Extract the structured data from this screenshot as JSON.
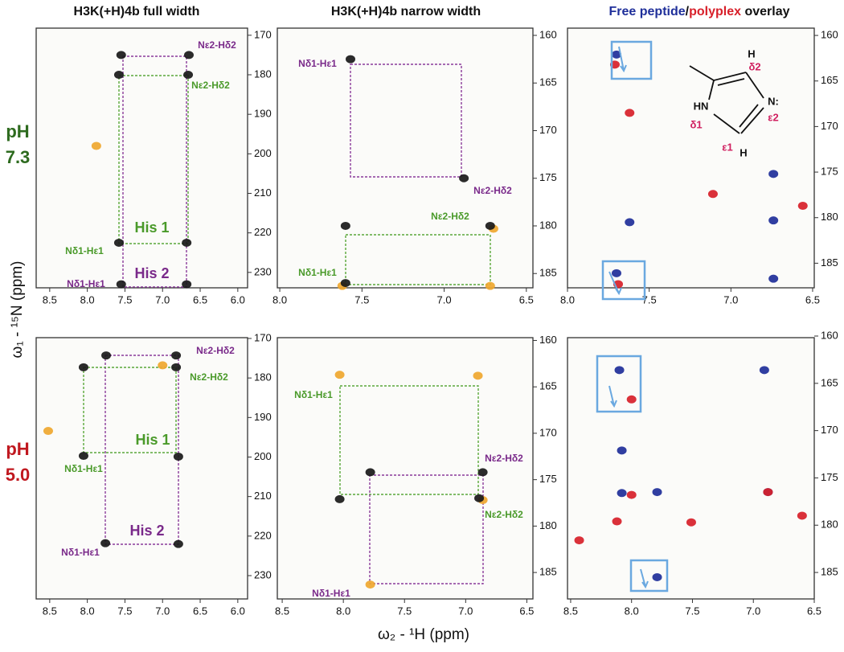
{
  "figure": {
    "y_axis_label": "ω₁ - ¹⁵N  (ppm)",
    "x_axis_label": "ω₂ - ¹H  (ppm)",
    "rows": [
      {
        "lines": [
          "pH",
          "7.3"
        ],
        "color": "#2e6b1f"
      },
      {
        "lines": [
          "pH",
          "5.0"
        ],
        "color": "#c0181f"
      }
    ]
  },
  "chart_data": [
    {
      "type": "scatter",
      "title": [
        "H3K(+H)4b full width"
      ],
      "title_colors": [
        "#111111"
      ],
      "xlim": [
        8.68,
        5.87
      ],
      "ylim": [
        233.9,
        168.2
      ],
      "xticks": [
        8.5,
        {
          "value": 8,
          "label": "8.0"
        },
        7.5,
        {
          "value": 7,
          "label": "7.0"
        },
        6.5,
        {
          "value": 6,
          "label": "6.0"
        }
      ],
      "yticks": [
        170,
        180,
        190,
        200,
        210,
        220,
        230
      ],
      "series": [
        {
          "color": "#f0a830",
          "x": [
            7.88
          ],
          "values": [
            198
          ]
        },
        {
          "color": "#1a1a1a",
          "x": [
            7.55,
            6.65,
            7.58,
            6.66,
            7.58,
            6.68,
            7.55,
            6.68
          ],
          "values": [
            175,
            175,
            180,
            180,
            222.5,
            222.5,
            233,
            233
          ]
        }
      ],
      "annotations": [
        {
          "text": "Nε2-Hδ2",
          "color": "#7a2a8a"
        },
        {
          "text": "Nε2-Hδ2",
          "color": "#4a9a2a"
        },
        {
          "text": "His 1",
          "color": "#4a9a2a"
        },
        {
          "text": "His 2",
          "color": "#7a2a8a"
        },
        {
          "text": "Nδ1-Hε1",
          "color": "#4a9a2a"
        },
        {
          "text": "Nδ1-Hε1",
          "color": "#7a2a8a"
        }
      ]
    },
    {
      "type": "scatter",
      "title": [
        "H3K(+H)4b narrow width"
      ],
      "title_colors": [
        "#111111"
      ],
      "xlim": [
        8.015,
        6.46
      ],
      "ylim": [
        186.5,
        159.24
      ],
      "xticks": [
        {
          "value": 8,
          "label": "8.0"
        },
        7.5,
        {
          "value": 7,
          "label": "7.0"
        },
        6.5
      ],
      "yticks": [
        160,
        165,
        170,
        175,
        180,
        185
      ],
      "series": [
        {
          "color": "#f0a830",
          "x": [
            7.62,
            6.72,
            6.7
          ],
          "values": [
            186.3,
            186.3,
            180.3
          ]
        },
        {
          "color": "#1a1a1a",
          "x": [
            7.57,
            6.88,
            7.6,
            6.72,
            7.6
          ],
          "values": [
            162.5,
            175,
            180,
            180,
            186
          ]
        }
      ],
      "annotations": [
        {
          "text": "Nδ1-Hε1",
          "color": "#7a2a8a"
        },
        {
          "text": "Nε2-Hδ2",
          "color": "#7a2a8a"
        },
        {
          "text": "Nε2-Hδ2",
          "color": "#4a9a2a"
        },
        {
          "text": "Nδ1-Hε1",
          "color": "#4a9a2a"
        }
      ]
    },
    {
      "type": "scatter",
      "title": [
        "Free peptide",
        "/",
        "polyplex",
        " overlay"
      ],
      "title_colors": [
        "#1f2f9a",
        "#111111",
        "#d8202a",
        "#111111"
      ],
      "xlim": [
        8.0,
        6.49
      ],
      "ylim": [
        187.7,
        159.2
      ],
      "xticks": [
        {
          "value": 8,
          "label": "8.0"
        },
        7.5,
        {
          "value": 7,
          "label": "7.0"
        },
        6.5
      ],
      "yticks": [
        160,
        165,
        170,
        175,
        180,
        185
      ],
      "series": [
        {
          "color": "#1f2f9a",
          "x": [
            7.7,
            6.74,
            7.62,
            6.74,
            7.7,
            6.74
          ],
          "values": [
            162.1,
            175.2,
            180.5,
            180.3,
            186.1,
            186.7
          ]
        },
        {
          "color": "#d8202a",
          "x": [
            7.71,
            7.69,
            7.11,
            6.56,
            7.62
          ],
          "values": [
            163.2,
            187.3,
            177.4,
            178.7,
            168.5
          ]
        }
      ],
      "annotations": [],
      "structure_labels": [
        "H",
        "δ2",
        "N:",
        "ε2",
        "HN",
        "δ1",
        "ε1",
        "H"
      ],
      "structure_colors": [
        "#111111",
        "#d02060",
        "#111111",
        "#d02060",
        "#111111",
        "#d02060",
        "#d02060",
        "#111111"
      ]
    },
    {
      "type": "scatter",
      "xlim": [
        8.68,
        5.87
      ],
      "ylim": [
        235.9,
        169.8
      ],
      "xticks": [
        8.5,
        {
          "value": 8,
          "label": "8.0"
        },
        7.5,
        {
          "value": 7,
          "label": "7.0"
        },
        6.5,
        {
          "value": 6,
          "label": "6.0"
        }
      ],
      "yticks": [
        170,
        180,
        190,
        200,
        210,
        220,
        230
      ],
      "series": [
        {
          "color": "#f0a830",
          "x": [
            8.52,
            7.0
          ],
          "values": [
            193.4,
            176.8
          ]
        },
        {
          "color": "#1a1a1a",
          "x": [
            7.75,
            6.82,
            8.05,
            6.82,
            8.05,
            6.79,
            7.76,
            6.79
          ],
          "values": [
            174.3,
            174.3,
            177.3,
            177.3,
            199.7,
            199.9,
            221.8,
            222
          ]
        }
      ],
      "annotations": [
        {
          "text": "Nε2-Hδ2",
          "color": "#7a2a8a"
        },
        {
          "text": "Nε2-Hδ2",
          "color": "#4a9a2a"
        },
        {
          "text": "His 1",
          "color": "#4a9a2a"
        },
        {
          "text": "His 2",
          "color": "#7a2a8a"
        },
        {
          "text": "Nδ1-Hε1",
          "color": "#4a9a2a"
        },
        {
          "text": "Nδ1-Hε1",
          "color": "#7a2a8a"
        }
      ]
    },
    {
      "type": "scatter",
      "xlim": [
        8.54,
        6.45
      ],
      "ylim": [
        187.85,
        159.7
      ],
      "xticks": [
        8.5,
        {
          "value": 8,
          "label": "8.0"
        },
        7.5,
        {
          "value": 7,
          "label": "7.0"
        },
        6.5
      ],
      "yticks": [
        160,
        165,
        170,
        175,
        180,
        185
      ],
      "series": [
        {
          "color": "#f0a830",
          "x": [
            8.03,
            6.9,
            6.86,
            7.78
          ],
          "values": [
            163.7,
            163.8,
            177.2,
            186.3
          ]
        },
        {
          "color": "#1a1a1a",
          "x": [
            8.03,
            6.86,
            6.89,
            7.78
          ],
          "values": [
            177.1,
            174.2,
            177,
            174.2
          ]
        }
      ],
      "annotations": [
        {
          "text": "Nδ1-Hε1",
          "color": "#4a9a2a"
        },
        {
          "text": "Nε2-Hδ2",
          "color": "#7a2a8a"
        },
        {
          "text": "Nε2-Hδ2",
          "color": "#4a9a2a"
        },
        {
          "text": "Nδ1-Hε1",
          "color": "#7a2a8a"
        }
      ]
    },
    {
      "type": "scatter",
      "xlim": [
        8.526,
        6.5
      ],
      "ylim": [
        187.8,
        160.17
      ],
      "xticks": [
        8.5,
        {
          "value": 8,
          "label": "8.0"
        },
        7.5,
        {
          "value": 7,
          "label": "7.0"
        },
        6.5
      ],
      "yticks": [
        160,
        165,
        170,
        175,
        180,
        185
      ],
      "series": [
        {
          "color": "#1f2f9a",
          "x": [
            8.1,
            6.91,
            8.08,
            6.88,
            8.08,
            7.79,
            7.79
          ],
          "values": [
            163.6,
            163.6,
            172.1,
            176.5,
            176.6,
            176.5,
            185.5
          ]
        },
        {
          "color": "#d8202a",
          "x": [
            8.0,
            8.0,
            6.88,
            8.43,
            8.12,
            7.51,
            6.6
          ],
          "values": [
            166.7,
            176.8,
            176.5,
            181.6,
            179.6,
            179.7,
            179.0
          ]
        }
      ],
      "annotations": []
    }
  ]
}
